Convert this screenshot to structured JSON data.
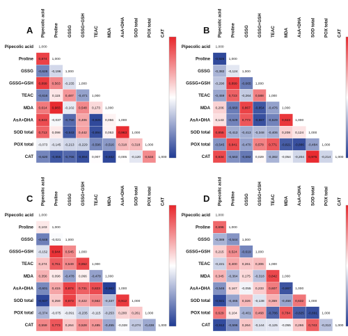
{
  "chart_data": [
    {
      "type": "heatmap",
      "panel": "A",
      "variables": [
        "Pipecolic acid",
        "Proline",
        "GSSG",
        "GSSG+GSH",
        "TEAC",
        "MDA",
        "AsA+DHA",
        "SOD total",
        "POX total",
        "CAT"
      ],
      "diagonal_label": "1,000",
      "color_scale": {
        "low": "#1f3a93",
        "mid": "#ffffff",
        "high": "#e8262b",
        "range": [
          -1,
          1
        ]
      },
      "rows": [
        [
          1.0
        ],
        [
          0.874,
          1.0
        ],
        [
          -0.628,
          -0.196,
          1.0
        ],
        [
          0.899,
          0.563,
          -0.155,
          1.0
        ],
        [
          -0.616,
          0.115,
          0.487,
          -0.471,
          1.0
        ],
        [
          0.614,
          0.983,
          -0.102,
          0.548,
          0.173,
          1.0
        ],
        [
          0.823,
          -0.037,
          -0.75,
          0.406,
          -0.926,
          0.056,
          1.0
        ],
        [
          0.713,
          0.098,
          -0.843,
          0.442,
          -0.894,
          0.053,
          0.963,
          1.0
        ],
        [
          -0.073,
          -0.145,
          -0.213,
          -0.229,
          -0.596,
          -0.516,
          0.318,
          0.318,
          1.0
        ],
        [
          -0.62,
          -0.855,
          -0.766,
          -0.894,
          0.007,
          -0.932,
          0.005,
          -0.12,
          0.534,
          1.0
        ]
      ],
      "labels": [
        [
          "1,000"
        ],
        [
          "0,874",
          "1,000"
        ],
        [
          "-0,628",
          "-0,196",
          "1,000"
        ],
        [
          "0,899",
          "0,563",
          "-0,155",
          "1,000"
        ],
        [
          "-0,616",
          "0,115",
          "0,487",
          "-0,471",
          "1,000"
        ],
        [
          "0,614",
          "0,983",
          "-0,102",
          "0,548",
          "0,173",
          "1,000"
        ],
        [
          "0,823",
          "-0,037",
          "-0,750",
          "0,406",
          "-0,926",
          "0,056",
          "1,000"
        ],
        [
          "0,713",
          "0,098",
          "-0,843",
          "0,442",
          "-0,894",
          "0,053",
          "0,963",
          "1,000"
        ],
        [
          "-0,073",
          "-0,145",
          "-0,213",
          "-0,229",
          "-0,596",
          "-0,516",
          "0,318",
          "0,318",
          "1,000"
        ],
        [
          "-0,620",
          "-0,855",
          "-0,766",
          "-0,894",
          "0,007",
          "-0,932",
          "0,005",
          "-0,120",
          "0,534",
          "1,000"
        ]
      ]
    },
    {
      "type": "heatmap",
      "panel": "B",
      "variables": [
        "Pipecolic acid",
        "Proline",
        "GSSG",
        "GSSG+GSH",
        "TEAC",
        "MDA",
        "AsA+DHA",
        "SOD total",
        "POX total",
        "CAT"
      ],
      "diagonal_label": "1,000",
      "color_scale": {
        "low": "#1f3a93",
        "mid": "#ffffff",
        "high": "#e8262b",
        "range": [
          -1,
          1
        ]
      },
      "rows": [
        [
          1.0
        ],
        [
          -0.926,
          1.0
        ],
        [
          -0.382,
          -0.124,
          1.0
        ],
        [
          -0.29,
          0.899,
          -0.665,
          1.0
        ],
        [
          -0.459,
          0.723,
          -0.264,
          0.588,
          1.0
        ],
        [
          0.206,
          -0.66,
          0.867,
          -0.854,
          -0.476,
          1.0
        ],
        [
          0.143,
          -0.629,
          0.773,
          -0.887,
          -0.629,
          0.923,
          1.0
        ],
        [
          0.855,
          -0.413,
          -0.413,
          -0.348,
          -0.406,
          0.208,
          0.124,
          1.0
        ],
        [
          -0.545,
          0.841,
          -0.47,
          0.578,
          0.771,
          -0.821,
          -0.886,
          -0.484,
          1.0
        ],
        [
          0.834,
          -0.563,
          -0.682,
          0.029,
          -0.382,
          -0.054,
          -0.204,
          0.975,
          -0.214,
          1.0
        ]
      ],
      "labels": [
        [
          "1,000"
        ],
        [
          "-0,926",
          "1,000"
        ],
        [
          "-0,382",
          "-0,124",
          "1,000"
        ],
        [
          "-0,290",
          "0,899",
          "-0,665",
          "1,000"
        ],
        [
          "-0,459",
          "0,723",
          "-0,264",
          "0,588",
          "1,000"
        ],
        [
          "0,206",
          "-0,660",
          "0,867",
          "-0,854",
          "-0,476",
          "1,000"
        ],
        [
          "0,143",
          "-0,629",
          "0,773",
          "-0,887",
          "-0,629",
          "0,923",
          "1,000"
        ],
        [
          "0,855",
          "-0,413",
          "-0,413",
          "-0,348",
          "-0,406",
          "0,208",
          "0,124",
          "1,000"
        ],
        [
          "-0,545",
          "0,841",
          "-0,470",
          "0,578",
          "0,771",
          "-0,821",
          "-0,886",
          "-0,484",
          "1,000"
        ],
        [
          "0,834",
          "-0,563",
          "-0,682",
          "0,029",
          "-0,382",
          "-0,054",
          "-0,204",
          "0,975",
          "-0,214",
          "1,000"
        ]
      ]
    },
    {
      "type": "heatmap",
      "panel": "C",
      "variables": [
        "Pipecolic acid",
        "Proline",
        "GSSG",
        "GSSG+GSH",
        "TEAC",
        "MDA",
        "AsA+DHA",
        "SOD total",
        "POX total",
        "CAT"
      ],
      "diagonal_label": "1,000",
      "color_scale": {
        "low": "#1f3a93",
        "mid": "#ffffff",
        "high": "#e8262b",
        "range": [
          -1,
          1
        ]
      },
      "rows": [
        [
          1.0
        ],
        [
          0.103,
          1.0
        ],
        [
          -0.648,
          -0.021,
          1.0
        ],
        [
          -0.152,
          0.944,
          0.545,
          1.0
        ],
        [
          0.274,
          0.761,
          0.549,
          0.852,
          1.0
        ],
        [
          0.356,
          0.098,
          -0.478,
          0.066,
          -0.478,
          1.0
        ],
        [
          -0.601,
          0.415,
          0.874,
          0.731,
          0.823,
          -0.962,
          1.0
        ],
        [
          -0.937,
          0.259,
          0.873,
          0.422,
          0.562,
          -0.337,
          0.912,
          1.0
        ],
        [
          -0.374,
          -0.075,
          -0.091,
          -0.235,
          -0.115,
          -0.253,
          0.2,
          0.261,
          1.0
        ],
        [
          0.559,
          0.773,
          0.264,
          0.528,
          0.485,
          -0.455,
          -0.028,
          -0.274,
          -0.438,
          1.0
        ]
      ],
      "labels": [
        [
          "1,000"
        ],
        [
          "0,103",
          "1,000"
        ],
        [
          "-0,648",
          "-0,021",
          "1,000"
        ],
        [
          "-0,152",
          "0,944",
          "0,545",
          "1,000"
        ],
        [
          "0,274",
          "0,761",
          "0,549",
          "0,852",
          "1,000"
        ],
        [
          "0,356",
          "0,098",
          "-0,478",
          "0,066",
          "-0,478",
          "1,000"
        ],
        [
          "-0,601",
          "0,415",
          "0,874",
          "0,731",
          "0,823",
          "-0,962",
          "1,000"
        ],
        [
          "-0,937",
          "0,259",
          "0,873",
          "0,422",
          "0,562",
          "-0,337",
          "0,912",
          "1,000"
        ],
        [
          "-0,374",
          "-0,075",
          "-0,091",
          "-0,235",
          "-0,115",
          "-0,253",
          "0,200",
          "0,261",
          "1,000"
        ],
        [
          "0,559",
          "0,773",
          "0,264",
          "0,528",
          "0,485",
          "-0,455",
          "-0,028",
          "-0,274",
          "-0,438",
          "1,000"
        ]
      ]
    },
    {
      "type": "heatmap",
      "panel": "D",
      "variables": [
        "Pipecolic acid",
        "Proline",
        "GSSG",
        "GSSG+GSH",
        "TEAC",
        "MDA",
        "AsA+DHA",
        "SOD total",
        "POX total",
        "CAT"
      ],
      "diagonal_label": "1,000",
      "color_scale": {
        "low": "#1f3a93",
        "mid": "#ffffff",
        "high": "#e8262b",
        "range": [
          -1,
          1
        ]
      },
      "rows": [
        [
          1.0
        ],
        [
          0.696,
          1.0
        ],
        [
          -0.389,
          -0.544,
          1.0
        ],
        [
          0.215,
          0.524,
          -0.619,
          1.0
        ],
        [
          -0.221,
          0.4,
          0.261,
          0.306,
          1.0
        ],
        [
          0.345,
          -0.364,
          0.175,
          -0.318,
          0.842,
          1.0
        ],
        [
          -0.546,
          0.167,
          -0.055,
          0.233,
          0.607,
          -0.867,
          1.0
        ],
        [
          -0.921,
          -0.465,
          0.326,
          -0.138,
          0.359,
          -0.458,
          0.632,
          1.0
        ],
        [
          0.629,
          0.104,
          -0.401,
          0.468,
          -0.786,
          0.784,
          -0.825,
          -0.891,
          1.0
        ],
        [
          -0.912,
          -0.596,
          0.264,
          -0.144,
          -0.125,
          -0.055,
          0.266,
          0.743,
          -0.313,
          1.0
        ]
      ],
      "labels": [
        [
          "1,000"
        ],
        [
          "0,696",
          "1,000"
        ],
        [
          "-0,389",
          "-0,544",
          "1,000"
        ],
        [
          "0,215",
          "0,524",
          "-0,619",
          "1,000"
        ],
        [
          "-0,221",
          "0,400",
          "0,261",
          "0,306",
          "1,000"
        ],
        [
          "0,345",
          "-0,364",
          "0,175",
          "-0,318",
          "0,842",
          "1,000"
        ],
        [
          "-0,546",
          "0,167",
          "-0,055",
          "0,233",
          "0,607",
          "-0,867",
          "1,000"
        ],
        [
          "-0,921",
          "-0,465",
          "0,326",
          "-0,138",
          "0,359",
          "-0,458",
          "0,632",
          "1,000"
        ],
        [
          "0,629",
          "0,104",
          "-0,401",
          "0,468",
          "-0,786",
          "0,784",
          "-0,825",
          "-0,891",
          "1,000"
        ],
        [
          "-0,912",
          "-0,596",
          "0,264",
          "-0,144",
          "-0,125",
          "-0,055",
          "0,266",
          "0,743",
          "-0,313",
          "1,000"
        ]
      ]
    }
  ]
}
